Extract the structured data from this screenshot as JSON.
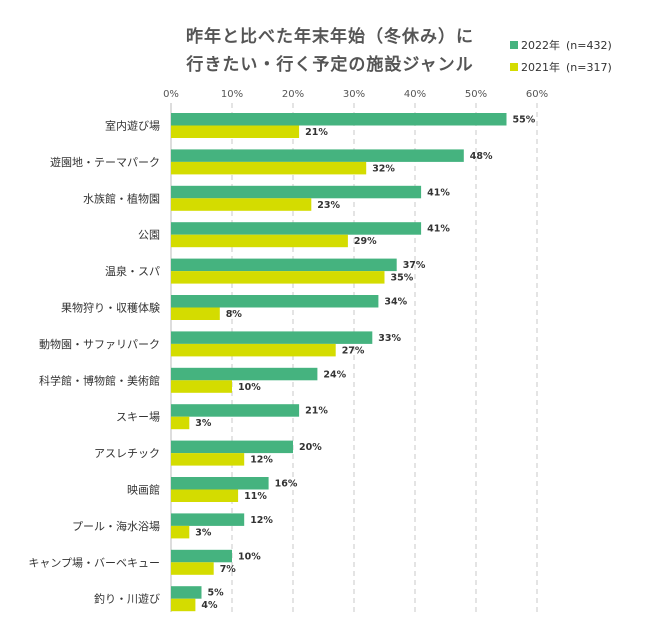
{
  "chart_data": {
    "type": "bar",
    "orientation": "horizontal",
    "title_lines": [
      "昨年と比べた年末年始（冬休み）に",
      "行きたい・行く予定の施設ジャンル"
    ],
    "xlim": [
      0,
      60
    ],
    "x_ticks": [
      "0%",
      "10%",
      "20%",
      "30%",
      "40%",
      "50%",
      "60%"
    ],
    "x_tick_values": [
      0,
      10,
      20,
      30,
      40,
      50,
      60
    ],
    "categories": [
      "室内遊び場",
      "遊園地・テーマパーク",
      "水族館・植物園",
      "公園",
      "温泉・スパ",
      "果物狩り・収穫体験",
      "動物園・サファリパーク",
      "科学館・博物館・美術館",
      "スキー場",
      "アスレチック",
      "映画館",
      "プール・海水浴場",
      "キャンプ場・バーベキュー",
      "釣り・川遊び"
    ],
    "series": [
      {
        "name": "2022年",
        "n_label": "(n=432)",
        "color": "#45b37f",
        "values": [
          55,
          48,
          41,
          41,
          37,
          34,
          33,
          24,
          21,
          20,
          16,
          12,
          10,
          5
        ]
      },
      {
        "name": "2021年",
        "n_label": "(n=317)",
        "color": "#d4dc00",
        "values": [
          21,
          32,
          23,
          29,
          35,
          8,
          27,
          10,
          3,
          12,
          11,
          3,
          7,
          4
        ]
      }
    ],
    "value_suffix": "%",
    "legend_position": "top-right",
    "grid": "vertical-dashed"
  }
}
